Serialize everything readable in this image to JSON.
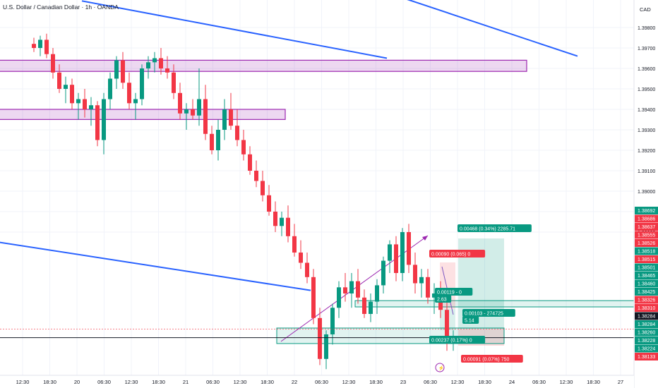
{
  "header": {
    "title": "U.S. Dollar / Canadian Dollar · 1h · OANDA",
    "currency": "CAD"
  },
  "colors": {
    "up": "#089981",
    "down": "#f23645",
    "trend": "#2962ff",
    "zone": "#9c27b0",
    "grid": "#f0f3fa"
  },
  "chart_data": {
    "type": "candlestick",
    "title": "U.S. Dollar / Canadian Dollar · 1h · OANDA",
    "ylim": [
      1.381,
      1.399
    ],
    "y_ticks": [
      "1.39800",
      "1.39700",
      "1.39600",
      "1.39500",
      "1.39400",
      "1.39300",
      "1.39200",
      "1.39100",
      "1.39000",
      "1.38900",
      "1.38800"
    ],
    "x_ticks": [
      "12:30",
      "18:30",
      "20",
      "06:30",
      "12:30",
      "18:30",
      "21",
      "06:30",
      "12:30",
      "18:30",
      "22",
      "06:30",
      "12:30",
      "18:30",
      "23",
      "06:30",
      "12:30",
      "18:30",
      "24",
      "06:30",
      "12:30",
      "18:30",
      "27"
    ],
    "candles": [
      {
        "o": 1.3972,
        "h": 1.3975,
        "l": 1.3968,
        "c": 1.397
      },
      {
        "o": 1.397,
        "h": 1.3976,
        "l": 1.3966,
        "c": 1.3974
      },
      {
        "o": 1.3974,
        "h": 1.3977,
        "l": 1.3965,
        "c": 1.3967
      },
      {
        "o": 1.3967,
        "h": 1.397,
        "l": 1.3955,
        "c": 1.3958
      },
      {
        "o": 1.3958,
        "h": 1.3962,
        "l": 1.3948,
        "c": 1.395
      },
      {
        "o": 1.395,
        "h": 1.3956,
        "l": 1.3943,
        "c": 1.3952
      },
      {
        "o": 1.3952,
        "h": 1.3955,
        "l": 1.394,
        "c": 1.3943
      },
      {
        "o": 1.3943,
        "h": 1.3948,
        "l": 1.3935,
        "c": 1.3945
      },
      {
        "o": 1.3945,
        "h": 1.395,
        "l": 1.3936,
        "c": 1.394
      },
      {
        "o": 1.394,
        "h": 1.3946,
        "l": 1.3932,
        "c": 1.3942
      },
      {
        "o": 1.3942,
        "h": 1.3944,
        "l": 1.3922,
        "c": 1.3925
      },
      {
        "o": 1.3925,
        "h": 1.3948,
        "l": 1.3918,
        "c": 1.3945
      },
      {
        "o": 1.3945,
        "h": 1.3958,
        "l": 1.394,
        "c": 1.3955
      },
      {
        "o": 1.3955,
        "h": 1.3966,
        "l": 1.395,
        "c": 1.3964
      },
      {
        "o": 1.3964,
        "h": 1.3968,
        "l": 1.395,
        "c": 1.3953
      },
      {
        "o": 1.3953,
        "h": 1.3958,
        "l": 1.394,
        "c": 1.3943
      },
      {
        "o": 1.3943,
        "h": 1.3948,
        "l": 1.3935,
        "c": 1.3945
      },
      {
        "o": 1.3945,
        "h": 1.3962,
        "l": 1.3942,
        "c": 1.396
      },
      {
        "o": 1.396,
        "h": 1.3966,
        "l": 1.3955,
        "c": 1.3963
      },
      {
        "o": 1.3963,
        "h": 1.3968,
        "l": 1.3958,
        "c": 1.3965
      },
      {
        "o": 1.3965,
        "h": 1.397,
        "l": 1.3957,
        "c": 1.396
      },
      {
        "o": 1.396,
        "h": 1.3966,
        "l": 1.3955,
        "c": 1.3958
      },
      {
        "o": 1.3958,
        "h": 1.3962,
        "l": 1.3945,
        "c": 1.3948
      },
      {
        "o": 1.3948,
        "h": 1.3953,
        "l": 1.3935,
        "c": 1.3938
      },
      {
        "o": 1.3938,
        "h": 1.3943,
        "l": 1.393,
        "c": 1.394
      },
      {
        "o": 1.394,
        "h": 1.3945,
        "l": 1.3935,
        "c": 1.3937
      },
      {
        "o": 1.3937,
        "h": 1.396,
        "l": 1.3932,
        "c": 1.3945
      },
      {
        "o": 1.3945,
        "h": 1.3952,
        "l": 1.3925,
        "c": 1.3928
      },
      {
        "o": 1.3928,
        "h": 1.3932,
        "l": 1.3918,
        "c": 1.392
      },
      {
        "o": 1.392,
        "h": 1.3935,
        "l": 1.3915,
        "c": 1.393
      },
      {
        "o": 1.393,
        "h": 1.3945,
        "l": 1.3925,
        "c": 1.394
      },
      {
        "o": 1.394,
        "h": 1.3948,
        "l": 1.393,
        "c": 1.3932
      },
      {
        "o": 1.3932,
        "h": 1.394,
        "l": 1.3922,
        "c": 1.3925
      },
      {
        "o": 1.3925,
        "h": 1.393,
        "l": 1.3915,
        "c": 1.3918
      },
      {
        "o": 1.3918,
        "h": 1.3922,
        "l": 1.3908,
        "c": 1.391
      },
      {
        "o": 1.391,
        "h": 1.3915,
        "l": 1.3902,
        "c": 1.3905
      },
      {
        "o": 1.3905,
        "h": 1.391,
        "l": 1.3895,
        "c": 1.3898
      },
      {
        "o": 1.3898,
        "h": 1.3903,
        "l": 1.3888,
        "c": 1.389
      },
      {
        "o": 1.389,
        "h": 1.3895,
        "l": 1.388,
        "c": 1.3883
      },
      {
        "o": 1.3883,
        "h": 1.389,
        "l": 1.3878,
        "c": 1.3887
      },
      {
        "o": 1.3887,
        "h": 1.3893,
        "l": 1.3875,
        "c": 1.3878
      },
      {
        "o": 1.3878,
        "h": 1.3884,
        "l": 1.3868,
        "c": 1.387
      },
      {
        "o": 1.387,
        "h": 1.3876,
        "l": 1.3862,
        "c": 1.3865
      },
      {
        "o": 1.3865,
        "h": 1.387,
        "l": 1.3855,
        "c": 1.3858
      },
      {
        "o": 1.3858,
        "h": 1.3862,
        "l": 1.3835,
        "c": 1.3838
      },
      {
        "o": 1.3838,
        "h": 1.3843,
        "l": 1.3815,
        "c": 1.3818
      },
      {
        "o": 1.3818,
        "h": 1.3832,
        "l": 1.3813,
        "c": 1.383
      },
      {
        "o": 1.383,
        "h": 1.3845,
        "l": 1.3825,
        "c": 1.3843
      },
      {
        "o": 1.3843,
        "h": 1.3856,
        "l": 1.3838,
        "c": 1.3853
      },
      {
        "o": 1.3853,
        "h": 1.386,
        "l": 1.3846,
        "c": 1.385
      },
      {
        "o": 1.385,
        "h": 1.386,
        "l": 1.3843,
        "c": 1.3856
      },
      {
        "o": 1.3856,
        "h": 1.3862,
        "l": 1.3845,
        "c": 1.3848
      },
      {
        "o": 1.3848,
        "h": 1.3852,
        "l": 1.3838,
        "c": 1.384
      },
      {
        "o": 1.384,
        "h": 1.385,
        "l": 1.3836,
        "c": 1.3846
      },
      {
        "o": 1.3846,
        "h": 1.3857,
        "l": 1.384,
        "c": 1.3854
      },
      {
        "o": 1.3854,
        "h": 1.3868,
        "l": 1.385,
        "c": 1.3866
      },
      {
        "o": 1.3866,
        "h": 1.3876,
        "l": 1.386,
        "c": 1.3874
      },
      {
        "o": 1.3874,
        "h": 1.3878,
        "l": 1.3856,
        "c": 1.386
      },
      {
        "o": 1.386,
        "h": 1.3882,
        "l": 1.3856,
        "c": 1.388
      },
      {
        "o": 1.388,
        "h": 1.3884,
        "l": 1.386,
        "c": 1.3864
      },
      {
        "o": 1.3864,
        "h": 1.387,
        "l": 1.385,
        "c": 1.3855
      },
      {
        "o": 1.3855,
        "h": 1.3862,
        "l": 1.3848,
        "c": 1.3858
      },
      {
        "o": 1.3858,
        "h": 1.3862,
        "l": 1.3845,
        "c": 1.3848
      },
      {
        "o": 1.3848,
        "h": 1.3855,
        "l": 1.384,
        "c": 1.385
      },
      {
        "o": 1.385,
        "h": 1.3856,
        "l": 1.3838,
        "c": 1.3842
      },
      {
        "o": 1.3842,
        "h": 1.3848,
        "l": 1.3822,
        "c": 1.3826
      },
      {
        "o": 1.3826,
        "h": 1.3832,
        "l": 1.3822,
        "c": 1.3828
      }
    ],
    "trendlines": [
      {
        "from": {
          "idx": 12,
          "price": 1.3993
        },
        "to": {
          "idx": 60,
          "price": 1.3965
        }
      },
      {
        "from": {
          "idx": -2,
          "price": 1.38755
        },
        "to": {
          "idx": 48,
          "price": 1.38515
        }
      },
      {
        "from": {
          "idx": 62,
          "price": 1.3995
        },
        "to": {
          "idx": 90,
          "price": 1.3966
        }
      }
    ],
    "zones": [
      {
        "from": -2,
        "to": 82,
        "top": 1.3964,
        "bottom": 1.3962
      },
      {
        "from": -2,
        "to": 44,
        "top": 1.394,
        "bottom": 1.39385
      },
      {
        "from": 55,
        "to": 100,
        "top": 1.38465,
        "bottom": 1.38455
      }
    ],
    "last_price": 1.38326,
    "current_line": 1.38284,
    "axis_labels": [
      {
        "v": 1.38692,
        "text": "1.38692",
        "color": "#089981"
      },
      {
        "v": 1.38686,
        "text": "1.38686",
        "color": "#f23645"
      },
      {
        "v": 1.38637,
        "text": "1.38637",
        "color": "#f23645"
      },
      {
        "v": 1.38555,
        "text": "1.38555",
        "color": "#f23645"
      },
      {
        "v": 1.38526,
        "text": "1.38526",
        "color": "#f23645"
      },
      {
        "v": 1.38518,
        "text": "1.38518",
        "color": "#089981"
      },
      {
        "v": 1.38515,
        "text": "1.38515",
        "color": "#f23645"
      },
      {
        "v": 1.38501,
        "text": "1.38501",
        "color": "#089981"
      },
      {
        "v": 1.38465,
        "text": "1.38465",
        "color": "#089981"
      },
      {
        "v": 1.3846,
        "text": "1.38460",
        "color": "#089981"
      },
      {
        "v": 1.38425,
        "text": "1.38425",
        "color": "#089981"
      },
      {
        "v": 1.38326,
        "text": "1.38326",
        "color": "#f23645",
        "extra": "56:52"
      },
      {
        "v": 1.3831,
        "text": "1.38310",
        "color": "#f23645"
      },
      {
        "v": 1.38284,
        "text": "1.38284",
        "color": "#131722"
      },
      {
        "v": 1.38284,
        "text": "1.38284",
        "color": "#089981"
      },
      {
        "v": 1.3826,
        "text": "1.38260",
        "color": "#089981"
      },
      {
        "v": 1.38228,
        "text": "1.38228",
        "color": "#089981"
      },
      {
        "v": 1.38224,
        "text": "1.38224",
        "color": "#089981"
      },
      {
        "v": 1.38133,
        "text": "1.38133",
        "color": "#f23645"
      }
    ],
    "annotations": [
      {
        "text": "0.00468 (0.34%) 2285.71",
        "color": "#089981"
      },
      {
        "text": "0.00090 (0.065) 0",
        "color": "#f23645"
      },
      {
        "text": "0.00119 - 0",
        "color": "#089981"
      },
      {
        "text": "2.63",
        "color": "#089981"
      },
      {
        "text": "0.00103 - 274725",
        "color": "#089981"
      },
      {
        "text": "5.14",
        "color": "#089981"
      },
      {
        "text": "0.00237 (0.17%) 0",
        "color": "#089981"
      },
      {
        "text": "0.00091 (0.07%) 750",
        "color": "#f23645"
      }
    ]
  }
}
